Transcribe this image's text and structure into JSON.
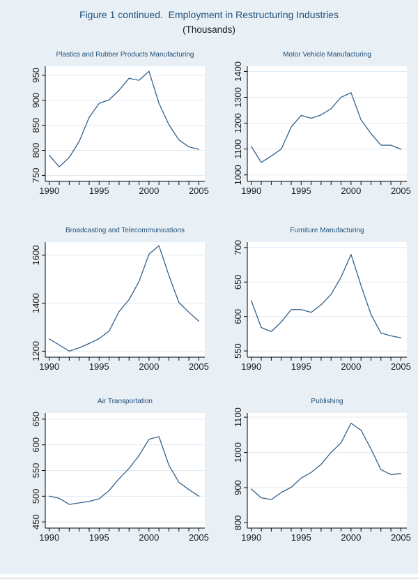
{
  "page": {
    "title": "Figure 1 continued.  Employment in Restructuring Industries",
    "subtitle": "(Thousands)"
  },
  "colors": {
    "background": "#e9f0f5",
    "plot_background": "#ffffff",
    "grid": "#dfeaf2",
    "axis": "#000000",
    "axis_text": "#1a1a1a",
    "line": "#336089",
    "title_text": "#1f4e79"
  },
  "chart_data": [
    {
      "type": "line",
      "title": "Plastics and Rubber Products Manufacturing",
      "x": [
        1990,
        1991,
        1992,
        1993,
        1994,
        1995,
        1996,
        1997,
        1998,
        1999,
        2000,
        2001,
        2002,
        2003,
        2004,
        2005
      ],
      "values": [
        790,
        767,
        786,
        818,
        866,
        894,
        901,
        920,
        944,
        940,
        958,
        894,
        851,
        821,
        807,
        802
      ],
      "xlim": [
        1989.6,
        2005.6
      ],
      "ylim": [
        738,
        968
      ],
      "yticks": [
        750,
        800,
        850,
        900,
        950
      ],
      "xticks_labeled": [
        1990,
        1995,
        2000,
        2005
      ],
      "xlabel": "",
      "ylabel": "",
      "grid": "horizontal",
      "legend": "none"
    },
    {
      "type": "line",
      "title": "Motor Vehicle Manufacturing",
      "x": [
        1990,
        1991,
        1992,
        1993,
        1994,
        1995,
        1996,
        1997,
        1998,
        1999,
        2000,
        2001,
        2002,
        2003,
        2004,
        2005
      ],
      "values": [
        1110,
        1048,
        1073,
        1100,
        1185,
        1230,
        1219,
        1232,
        1256,
        1300,
        1318,
        1213,
        1160,
        1115,
        1115,
        1099
      ],
      "xlim": [
        1989.6,
        2005.6
      ],
      "ylim": [
        975,
        1420
      ],
      "yticks": [
        1000,
        1100,
        1200,
        1300,
        1400
      ],
      "xticks_labeled": [
        1990,
        1995,
        2000,
        2005
      ],
      "xlabel": "",
      "ylabel": "",
      "grid": "horizontal",
      "legend": "none"
    },
    {
      "type": "line",
      "title": "Broadcasting and Telecommunications",
      "x": [
        1990,
        1991,
        1992,
        1993,
        1994,
        1995,
        1996,
        1997,
        1998,
        1999,
        2000,
        2001,
        2002,
        2003,
        2004,
        2005
      ],
      "values": [
        1251,
        1226,
        1200,
        1214,
        1232,
        1252,
        1284,
        1365,
        1415,
        1490,
        1605,
        1640,
        1515,
        1403,
        1362,
        1325
      ],
      "xlim": [
        1989.6,
        2005.6
      ],
      "ylim": [
        1175,
        1655
      ],
      "yticks": [
        1200,
        1400,
        1600
      ],
      "xticks_labeled": [
        1990,
        1995,
        2000,
        2005
      ],
      "xlabel": "",
      "ylabel": "",
      "grid": "horizontal",
      "legend": "none"
    },
    {
      "type": "line",
      "title": "Furniture Manufacturing",
      "x": [
        1990,
        1991,
        1992,
        1993,
        1994,
        1995,
        1996,
        1997,
        1998,
        1999,
        2000,
        2001,
        2002,
        2003,
        2004,
        2005
      ],
      "values": [
        623,
        584,
        578,
        592,
        610,
        610,
        606,
        617,
        632,
        657,
        690,
        645,
        603,
        576,
        572,
        569
      ],
      "xlim": [
        1989.6,
        2005.6
      ],
      "ylim": [
        541,
        708
      ],
      "yticks": [
        550,
        600,
        650,
        700
      ],
      "xticks_labeled": [
        1990,
        1995,
        2000,
        2005
      ],
      "xlabel": "",
      "ylabel": "",
      "grid": "horizontal",
      "legend": "none"
    },
    {
      "type": "line",
      "title": "Air Transportation",
      "x": [
        1990,
        1991,
        1992,
        1993,
        1994,
        1995,
        1996,
        1997,
        1998,
        1999,
        2000,
        2001,
        2002,
        2003,
        2004,
        2005
      ],
      "values": [
        500,
        496,
        484,
        487,
        490,
        495,
        511,
        534,
        554,
        579,
        611,
        616,
        560,
        527,
        513,
        500
      ],
      "xlim": [
        1989.6,
        2005.6
      ],
      "ylim": [
        438,
        662
      ],
      "yticks": [
        450,
        500,
        550,
        600,
        650
      ],
      "xticks_labeled": [
        1990,
        1995,
        2000,
        2005
      ],
      "xlabel": "",
      "ylabel": "",
      "grid": "horizontal",
      "legend": "none"
    },
    {
      "type": "line",
      "title": "Publishing",
      "x": [
        1990,
        1991,
        1992,
        1993,
        1994,
        1995,
        1996,
        1997,
        1998,
        1999,
        2000,
        2001,
        2002,
        2003,
        2004,
        2005
      ],
      "values": [
        896,
        871,
        866,
        886,
        901,
        927,
        943,
        966,
        1000,
        1027,
        1083,
        1063,
        1010,
        951,
        937,
        940
      ],
      "xlim": [
        1989.6,
        2005.6
      ],
      "ylim": [
        785,
        1112
      ],
      "yticks": [
        800,
        900,
        1000,
        1100
      ],
      "xticks_labeled": [
        1990,
        1995,
        2000,
        2005
      ],
      "xlabel": "",
      "ylabel": "",
      "grid": "horizontal",
      "legend": "none"
    }
  ]
}
